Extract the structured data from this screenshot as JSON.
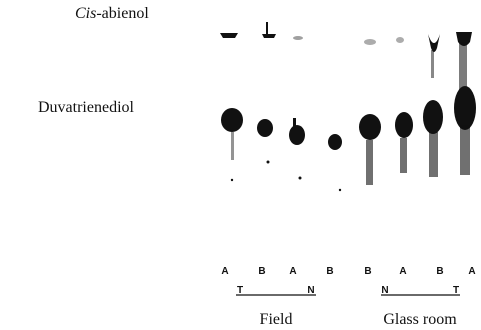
{
  "compounds": [
    {
      "italic": "Cis",
      "text": "-abienol"
    },
    {
      "text": "Duvatrienediol"
    }
  ],
  "lanes": [
    "A",
    "B",
    "A",
    "B",
    "B",
    "A",
    "B",
    "A"
  ],
  "groups": [
    {
      "left": "T",
      "right": "N",
      "label": "Field"
    },
    {
      "left": "N",
      "right": "T",
      "label": "Glass room"
    }
  ]
}
